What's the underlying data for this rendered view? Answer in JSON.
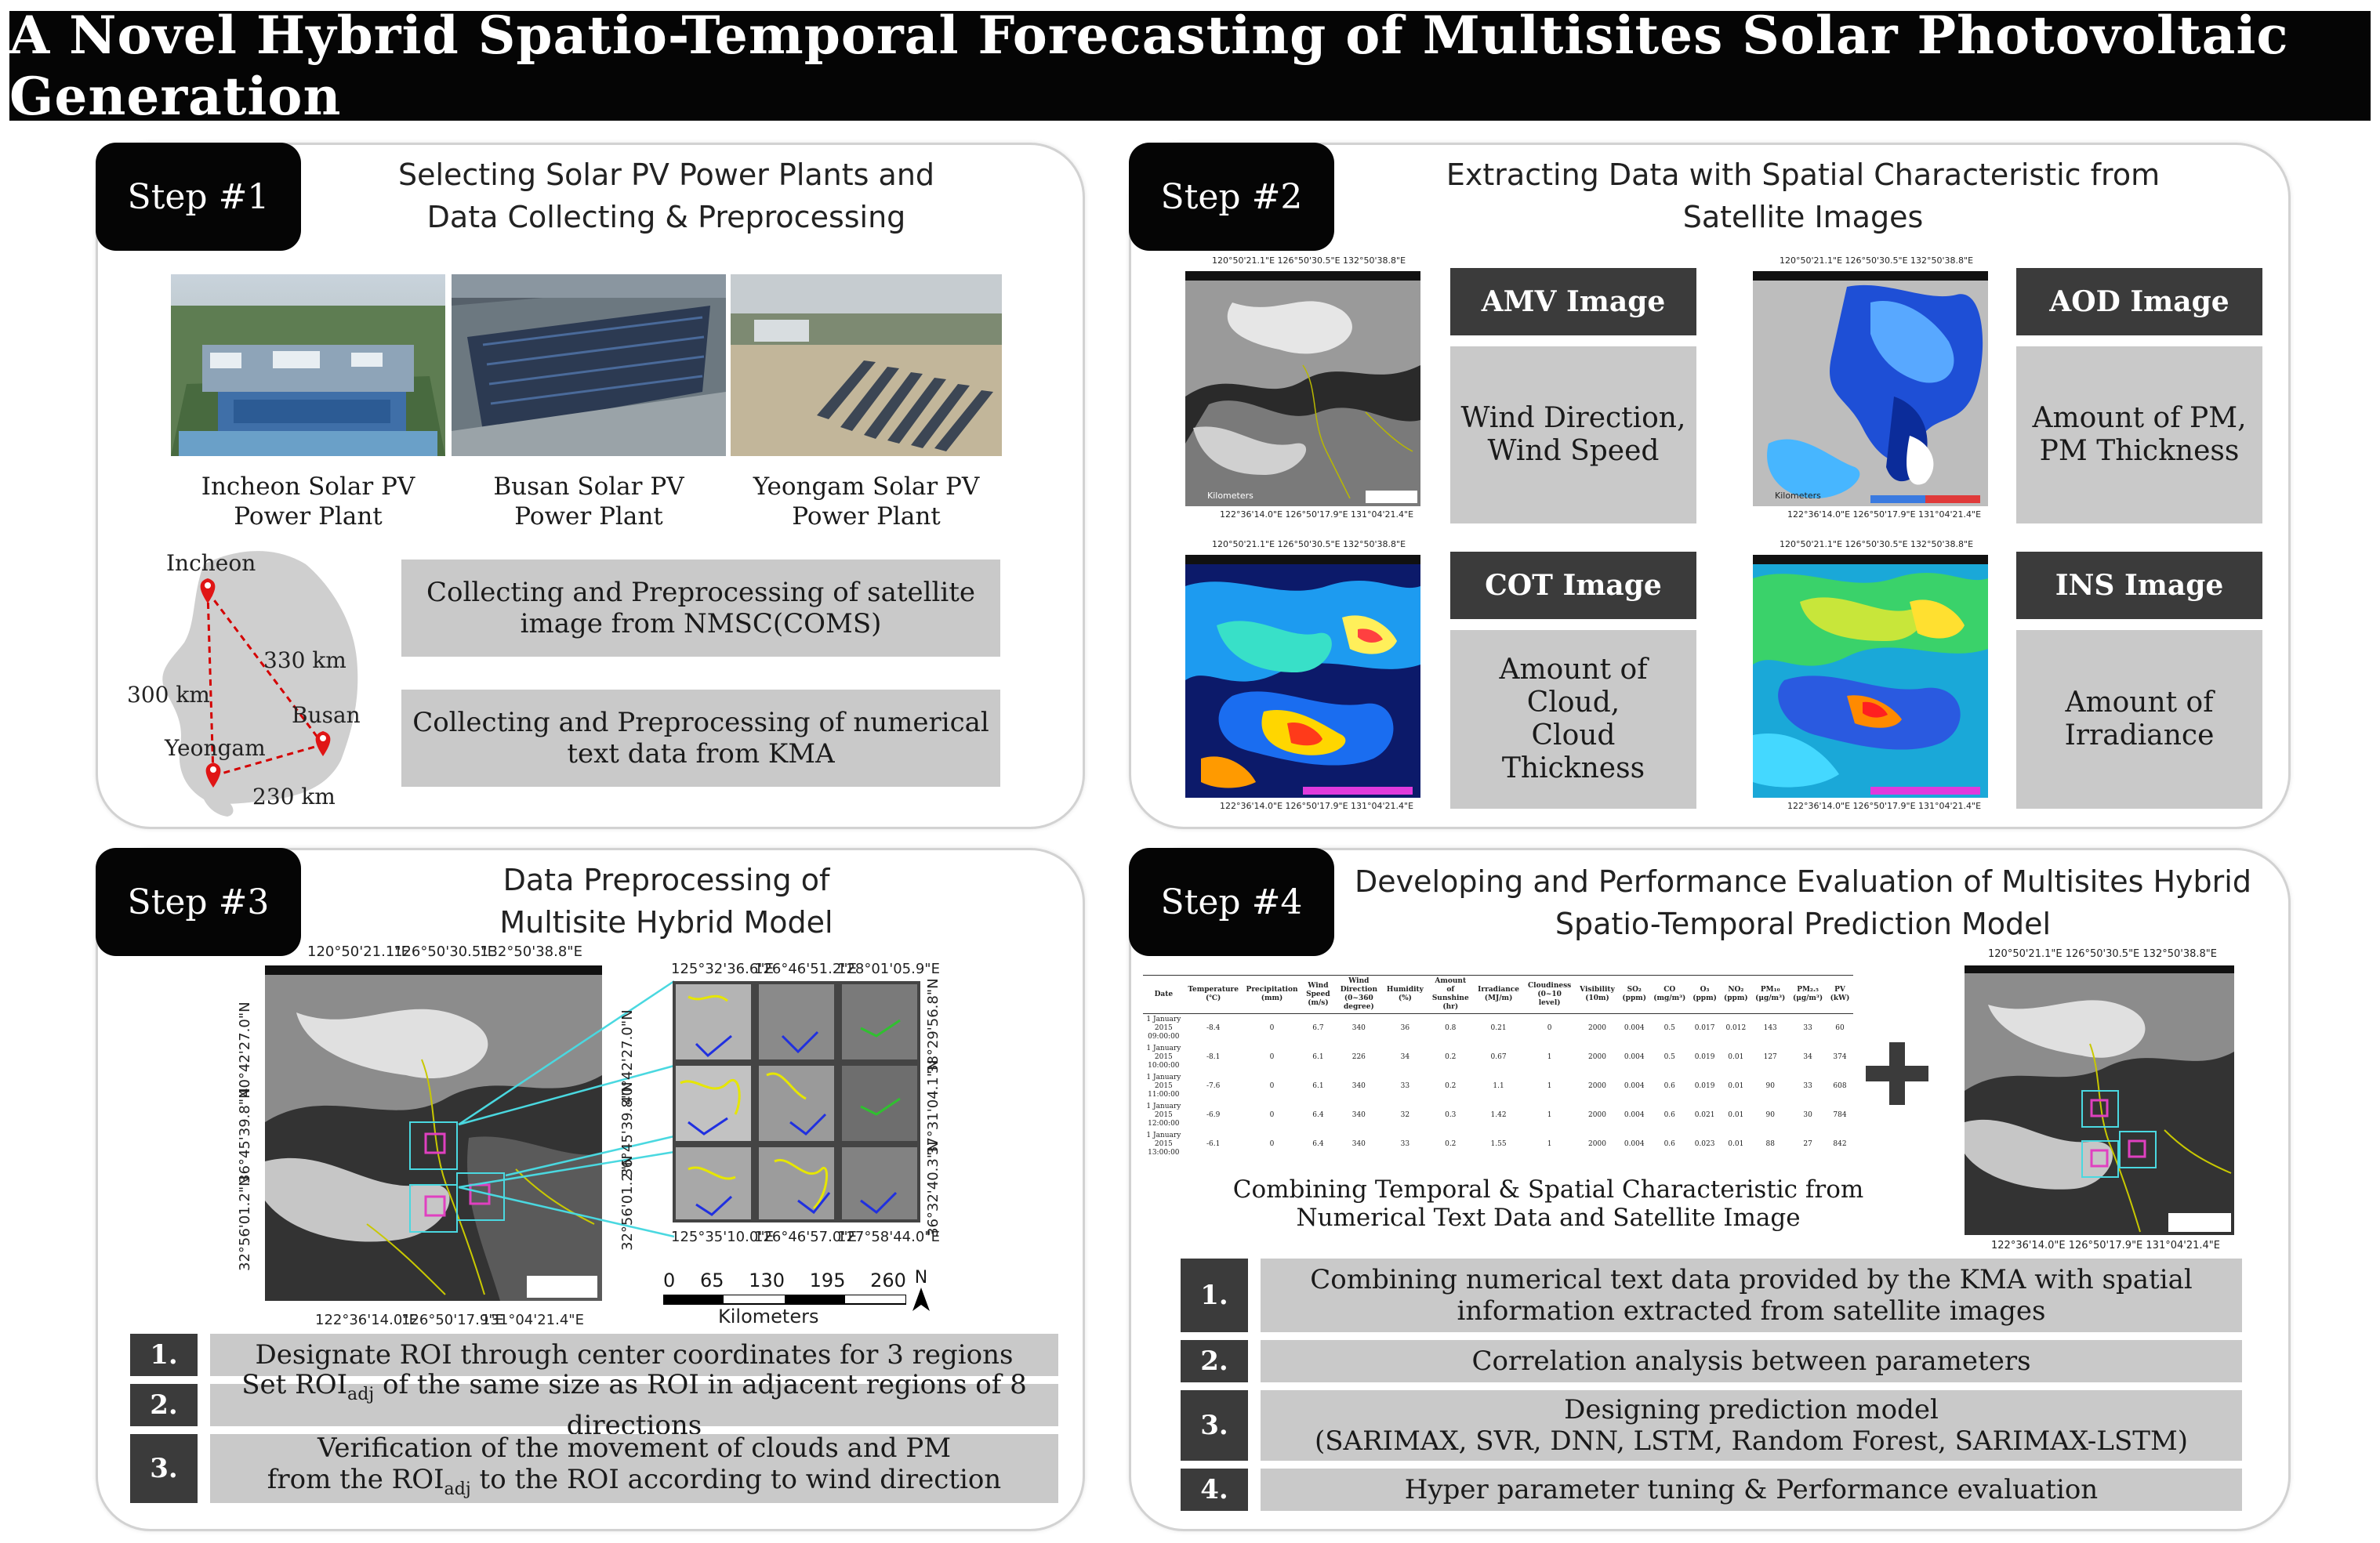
{
  "title": "A Novel Hybrid Spatio-Temporal Forecasting of Multisites Solar Photovoltaic Generation",
  "step1": {
    "tab": "Step #1",
    "heading": [
      "Selecting Solar PV Power Plants and",
      "Data Collecting & Preprocessing"
    ],
    "plants": [
      {
        "line1": "Incheon Solar PV",
        "line2": "Power Plant"
      },
      {
        "line1": "Busan Solar PV",
        "line2": "Power Plant"
      },
      {
        "line1": "Yeongam Solar PV",
        "line2": "Power Plant"
      }
    ],
    "map": {
      "cities": [
        "Incheon",
        "Busan",
        "Yeongam"
      ],
      "distances": [
        "330 km",
        "300 km",
        "230 km"
      ]
    },
    "boxes": [
      [
        "Collecting and Preprocessing of satellite",
        "image from NMSC(COMS)"
      ],
      [
        "Collecting and Preprocessing of numerical",
        "text data from KMA"
      ]
    ]
  },
  "step2": {
    "tab": "Step #2",
    "heading": [
      "Extracting Data with Spatial Characteristic from",
      "Satellite Images"
    ],
    "images": [
      {
        "label": "AMV Image",
        "desc": [
          "Wind Direction,",
          "Wind Speed"
        ]
      },
      {
        "label": "AOD Image",
        "desc": [
          "Amount of PM,",
          "PM Thickness"
        ]
      },
      {
        "label": "COT Image",
        "desc": [
          "Amount of",
          "Cloud,",
          "Cloud",
          "Thickness"
        ]
      },
      {
        "label": "INS Image",
        "desc": [
          "Amount of",
          "Irradiance"
        ]
      }
    ],
    "coords_top": "120°50'21.1\"E   126°50'30.5\"E   132°50'38.8\"E",
    "coords_bottom": "122°36'14.0\"E   126°50'17.9\"E   131°04'21.4\"E",
    "kilometers": "Kilometers"
  },
  "step3": {
    "tab": "Step #3",
    "heading": [
      "Data Preprocessing of",
      "Multisite Hybrid Model"
    ],
    "map_coords_top": [
      "120°50'21.1\"E",
      "126°50'30.5\"E",
      "132°50'38.8\"E"
    ],
    "map_coords_bottom": [
      "122°36'14.0\"E",
      "126°50'17.9\"E",
      "131°04'21.4\"E"
    ],
    "map_coords_left": [
      "40°42'27.0\"N",
      "36°45'39.8\"N",
      "32°56'01.2\"N"
    ],
    "grid_coords_top": [
      "125°32'36.6\"E",
      "126°46'51.2\"E",
      "128°01'05.9\"E"
    ],
    "grid_coords_bottom": [
      "125°35'10.0\"E",
      "126°46'57.0\"E",
      "127°58'44.0\"E"
    ],
    "grid_coords_left": [
      "40°42'27.0\"N",
      "36°45'39.8\"N",
      "32°56'01.2\"N"
    ],
    "grid_coords_right": [
      "38°29'56.8\"N",
      "37°31'04.1\"N",
      "36°32'40.3\"N"
    ],
    "scale_ticks": [
      "0",
      "65",
      "130",
      "195",
      "260"
    ],
    "scale_unit": "Kilometers",
    "north": "N",
    "items": [
      {
        "num": "1.",
        "text": "Designate ROI through center coordinates for 3 regions"
      },
      {
        "num": "2.",
        "pre": "Set ROI",
        "sub": "adj",
        "post": " of the same size as ROI in adjacent regions of 8 directions"
      },
      {
        "num": "3.",
        "line1": "Verification of the movement of clouds and PM",
        "pre": "from the ROI",
        "sub": "adj",
        "post": " to the ROI according to wind direction"
      }
    ]
  },
  "step4": {
    "tab": "Step #4",
    "heading": [
      "Developing and Performance Evaluation of Multisites Hybrid",
      "Spatio-Temporal Prediction Model"
    ],
    "table": {
      "headers": [
        "Date",
        "Temperature (℃)",
        "Precipitation (mm)",
        "Wind Speed (m/s)",
        "Wind Direction (0~360 degree)",
        "Humidity (%)",
        "Amount of Sunshine (hr)",
        "Irradiance (MJ/m)",
        "Cloudiness (0~10 level)",
        "Visibility (10m)",
        "SO₂ (ppm)",
        "CO (mg/m³)",
        "O₃ (ppm)",
        "NO₂ (ppm)",
        "PM₁₀ (μg/m³)",
        "PM₂.₅ (μg/m³)",
        "PV (kW)"
      ],
      "rows": [
        [
          "1 January 2015 09:00:00",
          "-8.4",
          "0",
          "6.7",
          "340",
          "36",
          "0.8",
          "0.21",
          "0",
          "2000",
          "0.004",
          "0.5",
          "0.017",
          "0.012",
          "143",
          "33",
          "60"
        ],
        [
          "1 January 2015 10:00:00",
          "-8.1",
          "0",
          "6.1",
          "226",
          "34",
          "0.2",
          "0.67",
          "1",
          "2000",
          "0.004",
          "0.5",
          "0.019",
          "0.01",
          "127",
          "34",
          "374"
        ],
        [
          "1 January 2015 11:00:00",
          "-7.6",
          "0",
          "6.1",
          "340",
          "33",
          "0.2",
          "1.1",
          "1",
          "2000",
          "0.004",
          "0.6",
          "0.019",
          "0.01",
          "90",
          "33",
          "608"
        ],
        [
          "1 January 2015 12:00:00",
          "-6.9",
          "0",
          "6.4",
          "340",
          "32",
          "0.3",
          "1.42",
          "1",
          "2000",
          "0.004",
          "0.6",
          "0.021",
          "0.01",
          "90",
          "30",
          "784"
        ],
        [
          "1 January 2015 13:00:00",
          "-6.1",
          "0",
          "6.4",
          "340",
          "33",
          "0.2",
          "1.55",
          "1",
          "2000",
          "0.004",
          "0.6",
          "0.023",
          "0.01",
          "88",
          "27",
          "842"
        ]
      ]
    },
    "combining_caption": [
      "Combining Temporal & Spatial Characteristic from",
      "Numerical Text Data and Satellite Image"
    ],
    "items": [
      {
        "num": "1.",
        "lines": [
          "Combining numerical text data provided by the KMA with spatial",
          "information extracted from satellite images"
        ]
      },
      {
        "num": "2.",
        "lines": [
          "Correlation analysis between parameters"
        ]
      },
      {
        "num": "3.",
        "lines": [
          "Designing prediction model",
          "(SARIMAX, SVR, DNN, LSTM, Random Forest, SARIMAX-LSTM)"
        ]
      },
      {
        "num": "4.",
        "lines": [
          "Hyper parameter tuning & Performance evaluation"
        ]
      }
    ]
  },
  "colors": {
    "dark": "#050505",
    "box_gray": "#c9c9c9",
    "label_dark": "#3b3b3b",
    "panel_border": "#d2d2d2"
  }
}
